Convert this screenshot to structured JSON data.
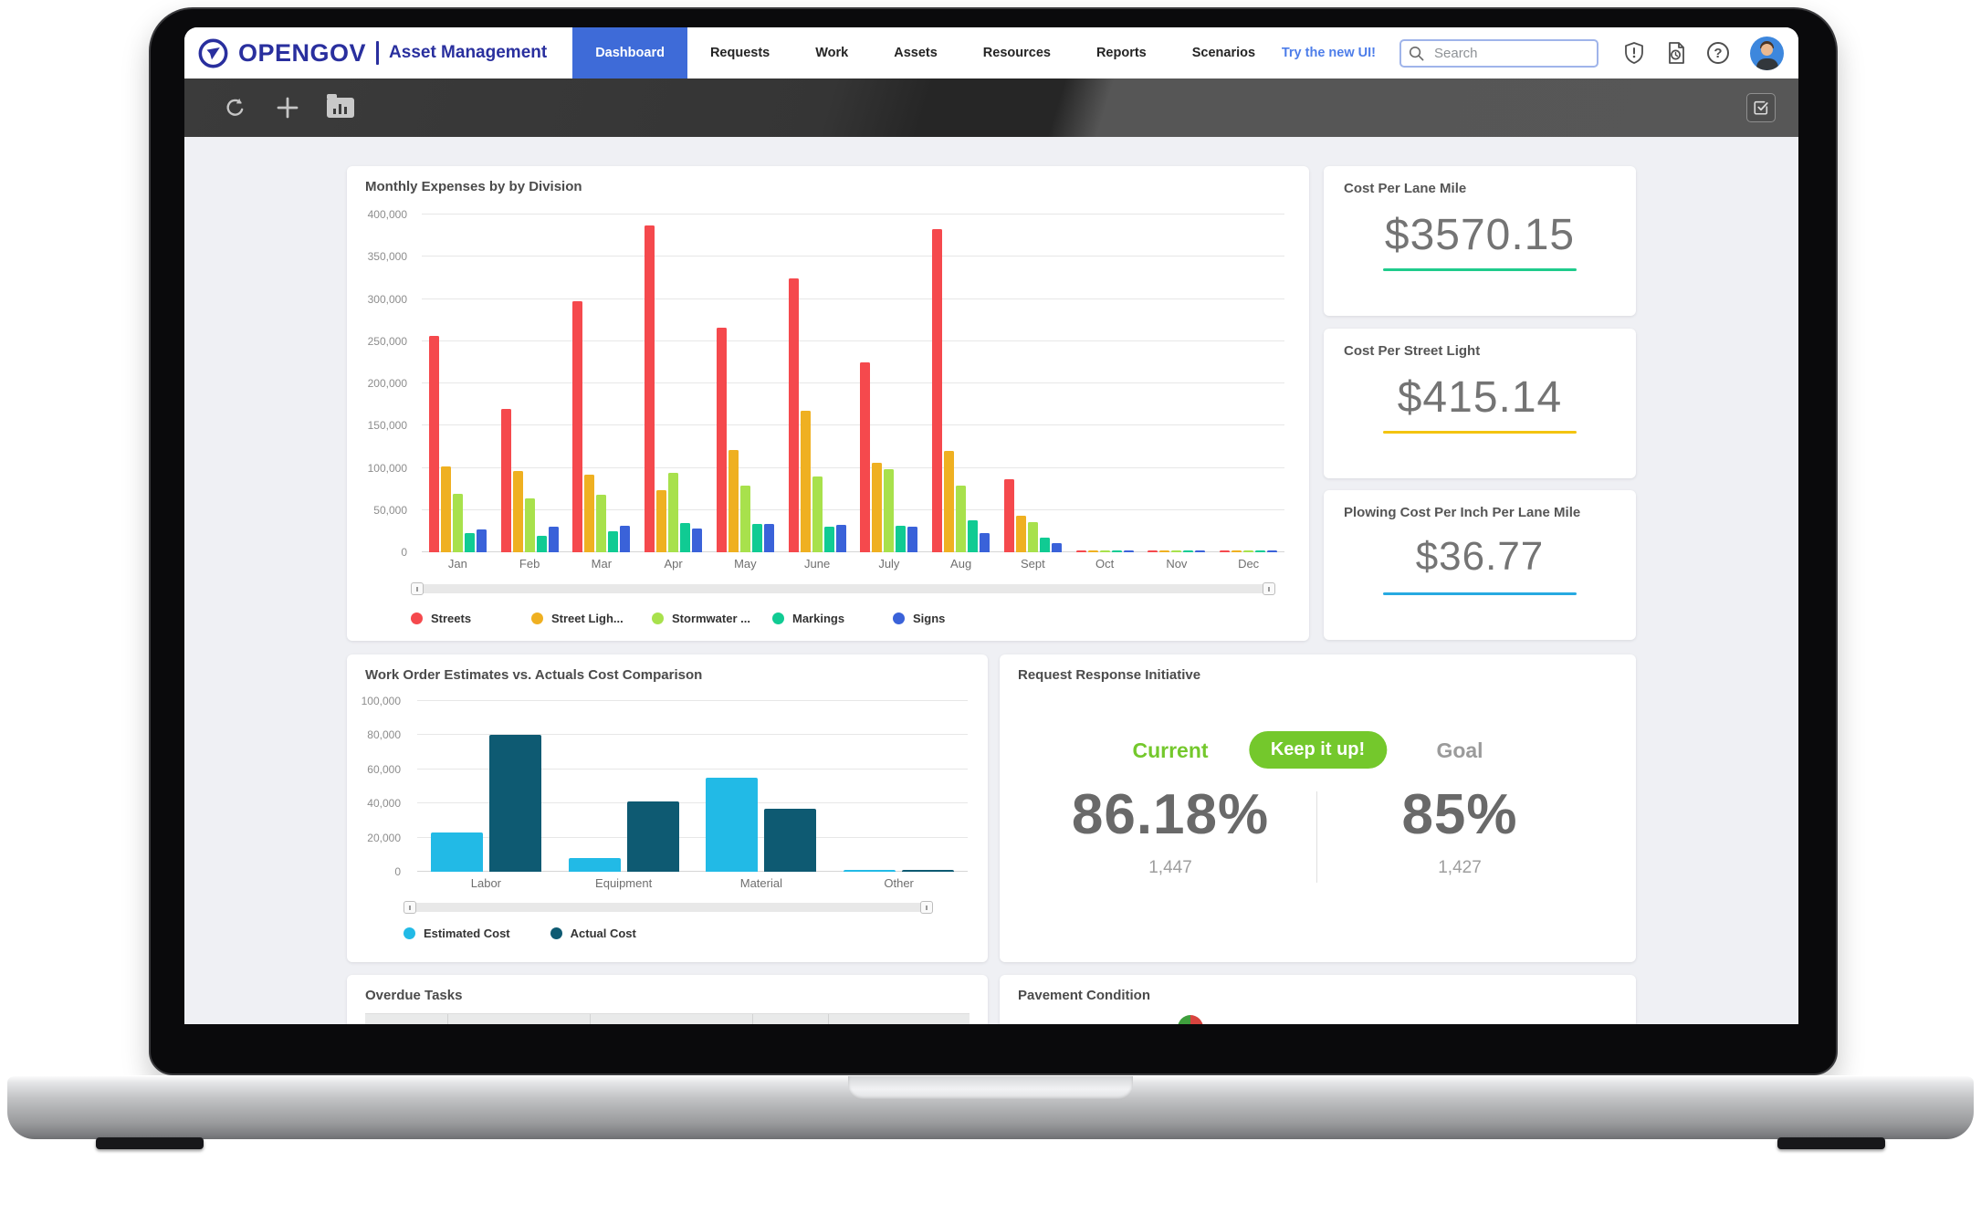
{
  "brand": {
    "logo_text": "OPENGOV",
    "product": "Asset Management"
  },
  "nav": {
    "tabs": [
      {
        "label": "Dashboard",
        "active": true
      },
      {
        "label": "Requests",
        "active": false
      },
      {
        "label": "Work",
        "active": false
      },
      {
        "label": "Assets",
        "active": false
      },
      {
        "label": "Resources",
        "active": false
      },
      {
        "label": "Reports",
        "active": false
      },
      {
        "label": "Scenarios",
        "active": false
      }
    ],
    "try_new_ui": "Try the new UI!",
    "search": {
      "placeholder": "Search"
    },
    "icons": [
      "shield-alert-icon",
      "document-history-icon",
      "help-icon",
      "avatar"
    ]
  },
  "toolbar": {
    "icons": [
      "refresh-icon",
      "add-icon",
      "report-folder-icon",
      "edit-check-icon"
    ]
  },
  "panels": {
    "kpis": [
      {
        "title": "Cost Per Lane Mile",
        "value": "$3570.15",
        "accent": "#1fcb8c"
      },
      {
        "title": "Cost Per Street Light",
        "value": "$415.14",
        "accent": "#f3c410"
      },
      {
        "title": "Plowing Cost Per Inch Per Lane Mile",
        "value": "$36.77",
        "accent": "#27a9e1"
      }
    ],
    "request_response": {
      "title": "Request Response Initiative",
      "current_label": "Current",
      "badge": "Keep it up!",
      "goal_label": "Goal",
      "current_value": "86.18%",
      "current_sub": "1,447",
      "goal_value": "85%",
      "goal_sub": "1,427",
      "green": "#74c82c"
    },
    "overdue": {
      "title": "Overdue Tasks"
    },
    "pavement": {
      "title": "Pavement Condition"
    }
  },
  "chart_data": [
    {
      "type": "bar",
      "title": "Monthly Expenses by by Division",
      "categories": [
        "Jan",
        "Feb",
        "Mar",
        "Apr",
        "May",
        "June",
        "July",
        "Aug",
        "Sept",
        "Oct",
        "Nov",
        "Dec"
      ],
      "series": [
        {
          "name": "Streets",
          "color": "#f5494d",
          "values": [
            256000,
            170000,
            297000,
            387000,
            266000,
            324000,
            225000,
            383000,
            86000,
            2500,
            2500,
            2500
          ]
        },
        {
          "name": "Street Ligh...",
          "color": "#efb021",
          "values": [
            102000,
            96000,
            92000,
            74000,
            121000,
            168000,
            106000,
            120000,
            43000,
            2500,
            2500,
            2500
          ]
        },
        {
          "name": "Stormwater ...",
          "color": "#a8e14c",
          "values": [
            69000,
            64000,
            68000,
            94000,
            79000,
            90000,
            98000,
            79000,
            36000,
            2500,
            2500,
            2500
          ]
        },
        {
          "name": "Markings",
          "color": "#10cb93",
          "values": [
            23000,
            19000,
            25000,
            35000,
            33000,
            30000,
            31000,
            38000,
            17000,
            2500,
            2500,
            2500
          ]
        },
        {
          "name": "Signs",
          "color": "#3a62d9",
          "values": [
            27000,
            30000,
            31000,
            28000,
            34000,
            32000,
            30000,
            23000,
            11000,
            2500,
            2500,
            2500
          ]
        }
      ],
      "ylim": [
        0,
        400000
      ],
      "yticks": [
        {
          "v": 0,
          "label": "0"
        },
        {
          "v": 50000,
          "label": "50,000"
        },
        {
          "v": 100000,
          "label": "100,000"
        },
        {
          "v": 150000,
          "label": "150,000"
        },
        {
          "v": 200000,
          "label": "200,000"
        },
        {
          "v": 250000,
          "label": "250,000"
        },
        {
          "v": 300000,
          "label": "300,000"
        },
        {
          "v": 350000,
          "label": "350,000"
        },
        {
          "v": 400000,
          "label": "400,000"
        }
      ],
      "grid": true,
      "legend_position": "bottom"
    },
    {
      "type": "bar",
      "title": "Work Order Estimates vs. Actuals Cost Comparison",
      "categories": [
        "Labor",
        "Equipment",
        "Material",
        "Other"
      ],
      "series": [
        {
          "name": "Estimated Cost",
          "color": "#22bae6",
          "values": [
            23000,
            8000,
            55000,
            700
          ]
        },
        {
          "name": "Actual Cost",
          "color": "#0e5a72",
          "values": [
            80000,
            41000,
            37000,
            700
          ]
        }
      ],
      "ylim": [
        0,
        100000
      ],
      "yticks": [
        {
          "v": 0,
          "label": "0"
        },
        {
          "v": 20000,
          "label": "20,000"
        },
        {
          "v": 40000,
          "label": "40,000"
        },
        {
          "v": 60000,
          "label": "60,000"
        },
        {
          "v": 80000,
          "label": "80,000"
        },
        {
          "v": 100000,
          "label": "100,000"
        }
      ],
      "grid": true,
      "legend_position": "bottom"
    }
  ]
}
